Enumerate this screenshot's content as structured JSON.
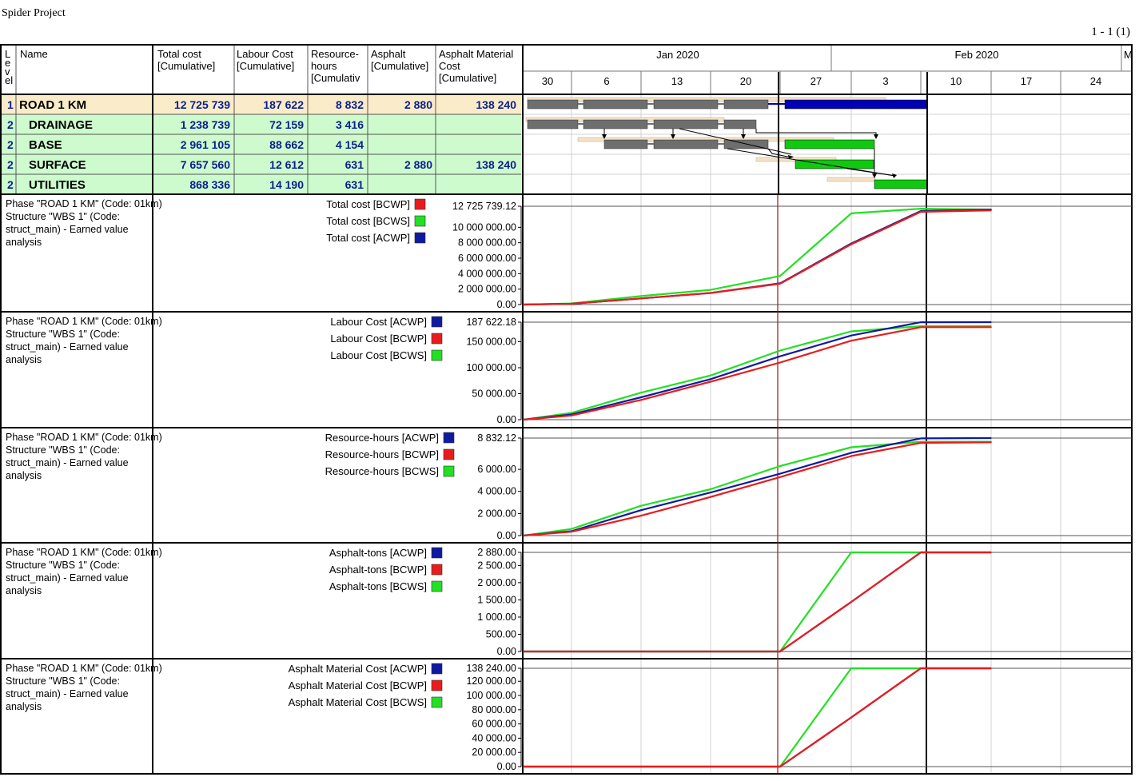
{
  "app_title": "Spider Project",
  "page_indicator": "1 - 1 (1)",
  "columns": {
    "level": "Level",
    "name": "Name",
    "total_cost": "Total cost [Cumulative]",
    "labour_cost": "Labour Cost [Cumulative]",
    "resource_hours": "Resource-hours [Cumulative]",
    "asphalt": "Asphalt [Cumulative]",
    "asphalt_material_cost": "Asphalt Material Cost [Cumulative]"
  },
  "rows": [
    {
      "level": "1",
      "name": "ROAD 1 KM",
      "total_cost": "12 725 739",
      "labour_cost": "187 622",
      "resource_hours": "8 832",
      "asphalt": "2 880",
      "asphalt_material_cost": "138 240"
    },
    {
      "level": "2",
      "name": "DRAINAGE",
      "total_cost": "1 238 739",
      "labour_cost": "72 159",
      "resource_hours": "3 416",
      "asphalt": "",
      "asphalt_material_cost": ""
    },
    {
      "level": "2",
      "name": "BASE",
      "total_cost": "2 961 105",
      "labour_cost": "88 662",
      "resource_hours": "4 154",
      "asphalt": "",
      "asphalt_material_cost": ""
    },
    {
      "level": "2",
      "name": "SURFACE",
      "total_cost": "7 657 560",
      "labour_cost": "12 612",
      "resource_hours": "631",
      "asphalt": "2 880",
      "asphalt_material_cost": "138 240"
    },
    {
      "level": "2",
      "name": "UTILITIES",
      "total_cost": "868 336",
      "labour_cost": "14 190",
      "resource_hours": "631",
      "asphalt": "",
      "asphalt_material_cost": ""
    }
  ],
  "timeline": {
    "months": [
      "Jan 2020",
      "Feb 2020",
      "M"
    ],
    "weeks": [
      "30",
      "6",
      "13",
      "20",
      "27",
      "3",
      "10",
      "17",
      "24"
    ]
  },
  "colors": {
    "summary_row_bg": "#fbecc9",
    "child_row_bg": "#cdfbcd",
    "bcwp": "#e81c1c",
    "bcws": "#22e022",
    "acwp": "#101aa0",
    "gantt_actual": "#6e6e6e",
    "gantt_baseline": "#f4e2c8",
    "gantt_critical": "#0000b4",
    "gantt_future": "#11c811",
    "status_date_line": "#a01010"
  },
  "chart_data": [
    {
      "type": "line",
      "description": "Phase \"ROAD 1 KM\" (Code: 01km) Structure \"WBS 1\" (Code: struct_main) - Earned value analysis",
      "x": [
        "30",
        "6",
        "13",
        "20",
        "27",
        "3",
        "10",
        "17"
      ],
      "ylim": [
        0,
        12725739.12
      ],
      "yticks": [
        "12 725 739.12",
        "10 000 000.00",
        "8 000 000.00",
        "6 000 000.00",
        "4 000 000.00",
        "2 000 000.00",
        "0.00"
      ],
      "series": [
        {
          "name": "Total cost [BCWP]",
          "color": "red",
          "values": [
            0,
            100000,
            800000,
            1500000,
            2700000,
            7800000,
            12000000,
            12200000
          ]
        },
        {
          "name": "Total cost [BCWS]",
          "color": "green",
          "values": [
            0,
            150000,
            1100000,
            1900000,
            3700000,
            11800000,
            12400000,
            12300000
          ]
        },
        {
          "name": "Total cost [ACWP]",
          "color": "blue",
          "values": [
            0,
            100000,
            800000,
            1500000,
            2750000,
            7900000,
            12100000,
            12300000
          ]
        }
      ]
    },
    {
      "type": "line",
      "description": "Phase \"ROAD 1 KM\" (Code: 01km) Structure \"WBS 1\" (Code: struct_main) - Earned value analysis",
      "x": [
        "30",
        "6",
        "13",
        "20",
        "27",
        "3",
        "10",
        "17"
      ],
      "ylim": [
        0,
        187622.18
      ],
      "yticks": [
        "187 622.18",
        "150 000.00",
        "100 000.00",
        "50 000.00",
        "0.00"
      ],
      "series": [
        {
          "name": "Labour Cost [ACWP]",
          "color": "blue",
          "values": [
            0,
            10000,
            43000,
            78000,
            122000,
            162000,
            187500,
            187600
          ]
        },
        {
          "name": "Labour Cost [BCWP]",
          "color": "red",
          "values": [
            0,
            8000,
            38000,
            73000,
            110000,
            152000,
            178000,
            178000
          ]
        },
        {
          "name": "Labour Cost [BCWS]",
          "color": "green",
          "values": [
            0,
            13000,
            52000,
            85000,
            133000,
            170000,
            180000,
            180000
          ]
        }
      ]
    },
    {
      "type": "line",
      "description": "Phase \"ROAD 1 KM\" (Code: 01km) Structure \"WBS 1\" (Code: struct_main) - Earned value analysis",
      "x": [
        "30",
        "6",
        "13",
        "20",
        "27",
        "3",
        "10",
        "17"
      ],
      "ylim": [
        0,
        8832.12
      ],
      "yticks": [
        "8 832.12",
        "6 000.00",
        "4 000.00",
        "2 000.00",
        "0.00"
      ],
      "series": [
        {
          "name": "Resource-hours [ACWP]",
          "color": "blue",
          "values": [
            0,
            400,
            2300,
            3900,
            5600,
            7500,
            8800,
            8830
          ]
        },
        {
          "name": "Resource-hours [BCWP]",
          "color": "red",
          "values": [
            0,
            350,
            1800,
            3500,
            5300,
            7200,
            8400,
            8450
          ]
        },
        {
          "name": "Resource-hours [BCWS]",
          "color": "green",
          "values": [
            0,
            600,
            2700,
            4200,
            6300,
            8000,
            8500,
            8500
          ]
        }
      ]
    },
    {
      "type": "line",
      "description": "Phase \"ROAD 1 KM\" (Code: 01km) Structure \"WBS 1\" (Code: struct_main) - Earned value analysis",
      "x": [
        "30",
        "6",
        "13",
        "20",
        "27",
        "3",
        "10",
        "17"
      ],
      "ylim": [
        0,
        2880
      ],
      "yticks": [
        "2 880.00",
        "2 500.00",
        "2 000.00",
        "1 500.00",
        "1 000.00",
        "500.00",
        "0.00"
      ],
      "series": [
        {
          "name": "Asphalt-tons [ACWP]",
          "color": "blue",
          "values": [
            0,
            0,
            0,
            0,
            0,
            1440,
            2880,
            2880
          ]
        },
        {
          "name": "Asphalt-tons [BCWP]",
          "color": "red",
          "values": [
            0,
            0,
            0,
            0,
            0,
            1440,
            2880,
            2880
          ]
        },
        {
          "name": "Asphalt-tons [BCWS]",
          "color": "green",
          "values": [
            0,
            0,
            0,
            0,
            0,
            2880,
            2880,
            2880
          ]
        }
      ]
    },
    {
      "type": "line",
      "description": "Phase \"ROAD 1 KM\" (Code: 01km) Structure \"WBS 1\" (Code: struct_main) - Earned value analysis",
      "x": [
        "30",
        "6",
        "13",
        "20",
        "27",
        "3",
        "10",
        "17"
      ],
      "ylim": [
        0,
        138240
      ],
      "yticks": [
        "138 240.00",
        "120 000.00",
        "100 000.00",
        "80 000.00",
        "60 000.00",
        "40 000.00",
        "20 000.00",
        "0.00"
      ],
      "series": [
        {
          "name": "Asphalt Material Cost [ACWP]",
          "color": "blue",
          "values": [
            0,
            0,
            0,
            0,
            0,
            69120,
            138240,
            138240
          ]
        },
        {
          "name": "Asphalt Material Cost [BCWP]",
          "color": "red",
          "values": [
            0,
            0,
            0,
            0,
            0,
            69120,
            138240,
            138240
          ]
        },
        {
          "name": "Asphalt Material Cost [BCWS]",
          "color": "green",
          "values": [
            0,
            0,
            0,
            0,
            0,
            138240,
            138240,
            138240
          ]
        }
      ]
    }
  ]
}
